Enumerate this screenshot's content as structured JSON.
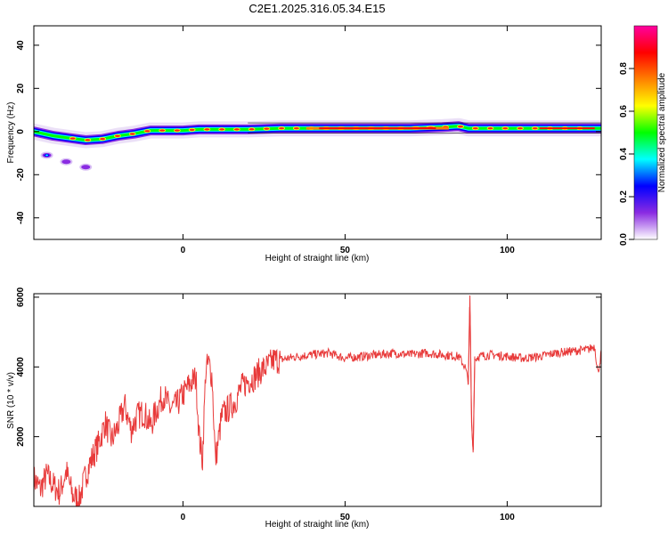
{
  "title": "C2E1.2025.316.05.34.E15",
  "chart_data": [
    {
      "type": "heatmap",
      "name": "spectrogram",
      "xlabel": "Height of straight line (km)",
      "ylabel": "Frequency (Hz)",
      "xlim": [
        -46,
        129
      ],
      "ylim": [
        -50,
        49
      ],
      "xticks": [
        0,
        50,
        100
      ],
      "yticks": [
        -40,
        -20,
        0,
        20,
        40
      ],
      "colorbar": {
        "label": "Normalized spectral amplitude",
        "range": [
          0,
          1
        ],
        "ticks": [
          "0.0",
          "0.2",
          "0.4",
          "0.6",
          "0.8"
        ],
        "tick_values": [
          0,
          0.2,
          0.4,
          0.6,
          0.8
        ],
        "colors": [
          "#ffffff",
          "#8a2be2",
          "#0000ff",
          "#00ffff",
          "#00ff00",
          "#ffff00",
          "#ff8000",
          "#ff0000",
          "#ff00a0"
        ]
      },
      "ridge": {
        "x": [
          -46,
          -40,
          -35,
          -30,
          -25,
          -20,
          -15,
          -10,
          -5,
          0,
          5,
          10,
          20,
          30,
          40,
          50,
          60,
          70,
          80,
          85,
          88,
          90,
          95,
          100,
          110,
          120,
          129
        ],
        "freq": [
          0,
          -2,
          -3,
          -4,
          -3.5,
          -2,
          -1,
          0.5,
          0.5,
          0.5,
          1,
          1,
          1,
          1.5,
          1.5,
          1.5,
          1.5,
          1.5,
          2,
          2.5,
          1.5,
          1.5,
          1.5,
          1.5,
          1.5,
          1.5,
          1.5
        ]
      },
      "blobs": [
        {
          "x": -42,
          "freq": -11,
          "amplitude": 0.3
        },
        {
          "x": -36,
          "freq": -14,
          "amplitude": 0.1
        },
        {
          "x": -30,
          "freq": -16.5,
          "amplitude": 0.15
        }
      ]
    },
    {
      "type": "line",
      "name": "snr",
      "xlabel": "Height of straight line (km)",
      "ylabel": "SNR (10 * v/v)",
      "xlim": [
        -46,
        129
      ],
      "ylim": [
        0,
        6100
      ],
      "xticks": [
        0,
        50,
        100
      ],
      "yticks": [
        2000,
        4000,
        6000
      ],
      "color": "#e83a3a",
      "x": [
        -46,
        -44,
        -42,
        -40,
        -38,
        -36,
        -34,
        -32,
        -30,
        -28,
        -26,
        -24,
        -22,
        -20,
        -18,
        -16,
        -14,
        -12,
        -10,
        -8,
        -6,
        -4,
        -2,
        0,
        2,
        4,
        5,
        6,
        7,
        8,
        9,
        10,
        12,
        14,
        16,
        18,
        20,
        22,
        24,
        26,
        28,
        30,
        35,
        40,
        45,
        50,
        55,
        60,
        65,
        70,
        75,
        80,
        85,
        87,
        88,
        88.5,
        89,
        89.5,
        90,
        91,
        95,
        100,
        105,
        110,
        115,
        120,
        125,
        127,
        128,
        129
      ],
      "y": [
        800,
        500,
        900,
        600,
        400,
        1000,
        300,
        200,
        900,
        1400,
        1800,
        2400,
        1900,
        2300,
        2900,
        2200,
        2600,
        2700,
        2300,
        2800,
        3200,
        2800,
        2900,
        3200,
        3500,
        3700,
        2000,
        1300,
        3900,
        4100,
        3700,
        1300,
        2600,
        2800,
        3000,
        3400,
        3600,
        3700,
        3900,
        4000,
        4200,
        4200,
        4300,
        4350,
        4400,
        4250,
        4300,
        4350,
        4400,
        4350,
        4400,
        4350,
        4300,
        4000,
        3600,
        6000,
        2500,
        1500,
        4200,
        4300,
        4350,
        4300,
        4250,
        4300,
        4400,
        4450,
        4500,
        4600,
        3800,
        4400
      ]
    }
  ]
}
